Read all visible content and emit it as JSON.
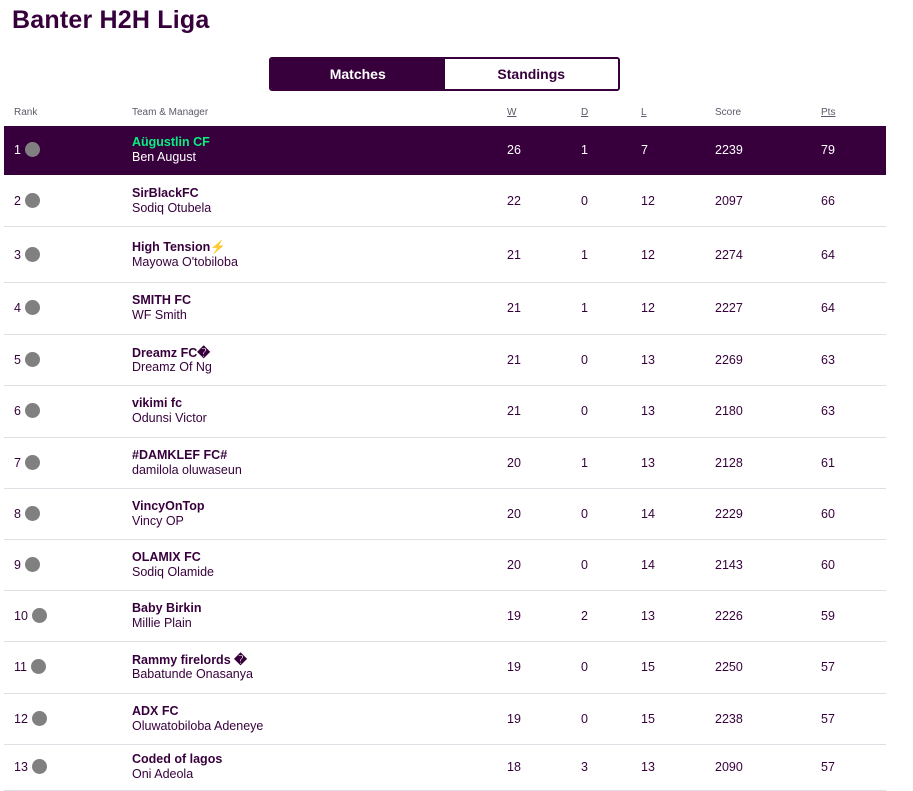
{
  "page": {
    "title": "Banter H2H Liga"
  },
  "tabs": [
    {
      "label": "Matches",
      "active": true
    },
    {
      "label": "Standings",
      "active": false
    }
  ],
  "columns": {
    "rank": "Rank",
    "team": "Team & Manager",
    "w": "W",
    "d": "D",
    "l": "L",
    "score": "Score",
    "pts": "Pts"
  },
  "colors": {
    "brand": "#37003c",
    "highlight_text": "#05f080",
    "movement_dot": "#808080"
  },
  "rows": [
    {
      "rank": "1",
      "team": "Aügustlin CF",
      "manager": "Ben August",
      "w": "26",
      "d": "1",
      "l": "7",
      "score": "2239",
      "pts": "79",
      "selected": true,
      "movement_icon": "no-change-dot-icon"
    },
    {
      "rank": "2",
      "team": "SirBlackFC",
      "manager": "Sodiq Otubela",
      "w": "22",
      "d": "0",
      "l": "12",
      "score": "2097",
      "pts": "66",
      "movement_icon": "no-change-dot-icon"
    },
    {
      "rank": "3",
      "team": "High Tension⚡",
      "manager": "Mayowa O'tobiloba",
      "w": "21",
      "d": "1",
      "l": "12",
      "score": "2274",
      "pts": "64",
      "movement_icon": "no-change-dot-icon"
    },
    {
      "rank": "4",
      "team": "SMITH FC",
      "manager": "WF Smith",
      "w": "21",
      "d": "1",
      "l": "12",
      "score": "2227",
      "pts": "64",
      "movement_icon": "no-change-dot-icon"
    },
    {
      "rank": "5",
      "team": "Dreamz FC�",
      "manager": "Dreamz Of Ng",
      "w": "21",
      "d": "0",
      "l": "13",
      "score": "2269",
      "pts": "63",
      "movement_icon": "no-change-dot-icon"
    },
    {
      "rank": "6",
      "team": "vikimi fc",
      "manager": "Odunsi Victor",
      "w": "21",
      "d": "0",
      "l": "13",
      "score": "2180",
      "pts": "63",
      "movement_icon": "no-change-dot-icon"
    },
    {
      "rank": "7",
      "team": "#DAMKLEF FC#",
      "manager": "damilola oluwaseun",
      "w": "20",
      "d": "1",
      "l": "13",
      "score": "2128",
      "pts": "61",
      "movement_icon": "no-change-dot-icon"
    },
    {
      "rank": "8",
      "team": "VincyOnTop",
      "manager": "Vincy OP",
      "w": "20",
      "d": "0",
      "l": "14",
      "score": "2229",
      "pts": "60",
      "movement_icon": "no-change-dot-icon"
    },
    {
      "rank": "9",
      "team": "OLAMIX FC",
      "manager": "Sodiq Olamide",
      "w": "20",
      "d": "0",
      "l": "14",
      "score": "2143",
      "pts": "60",
      "movement_icon": "no-change-dot-icon"
    },
    {
      "rank": "10",
      "team": "Baby Birkin",
      "manager": "Millie Plain",
      "w": "19",
      "d": "2",
      "l": "13",
      "score": "2226",
      "pts": "59",
      "movement_icon": "no-change-dot-icon"
    },
    {
      "rank": "11",
      "team": "Rammy firelords �",
      "manager": "Babatunde Onasanya",
      "w": "19",
      "d": "0",
      "l": "15",
      "score": "2250",
      "pts": "57",
      "movement_icon": "no-change-dot-icon"
    },
    {
      "rank": "12",
      "team": "ADX FC",
      "manager": "Oluwatobiloba Adeneye",
      "w": "19",
      "d": "0",
      "l": "15",
      "score": "2238",
      "pts": "57",
      "movement_icon": "no-change-dot-icon"
    },
    {
      "rank": "13",
      "team": "Coded of lagos",
      "manager": "Oni Adeola",
      "w": "18",
      "d": "3",
      "l": "13",
      "score": "2090",
      "pts": "57",
      "movement_icon": "no-change-dot-icon"
    }
  ]
}
